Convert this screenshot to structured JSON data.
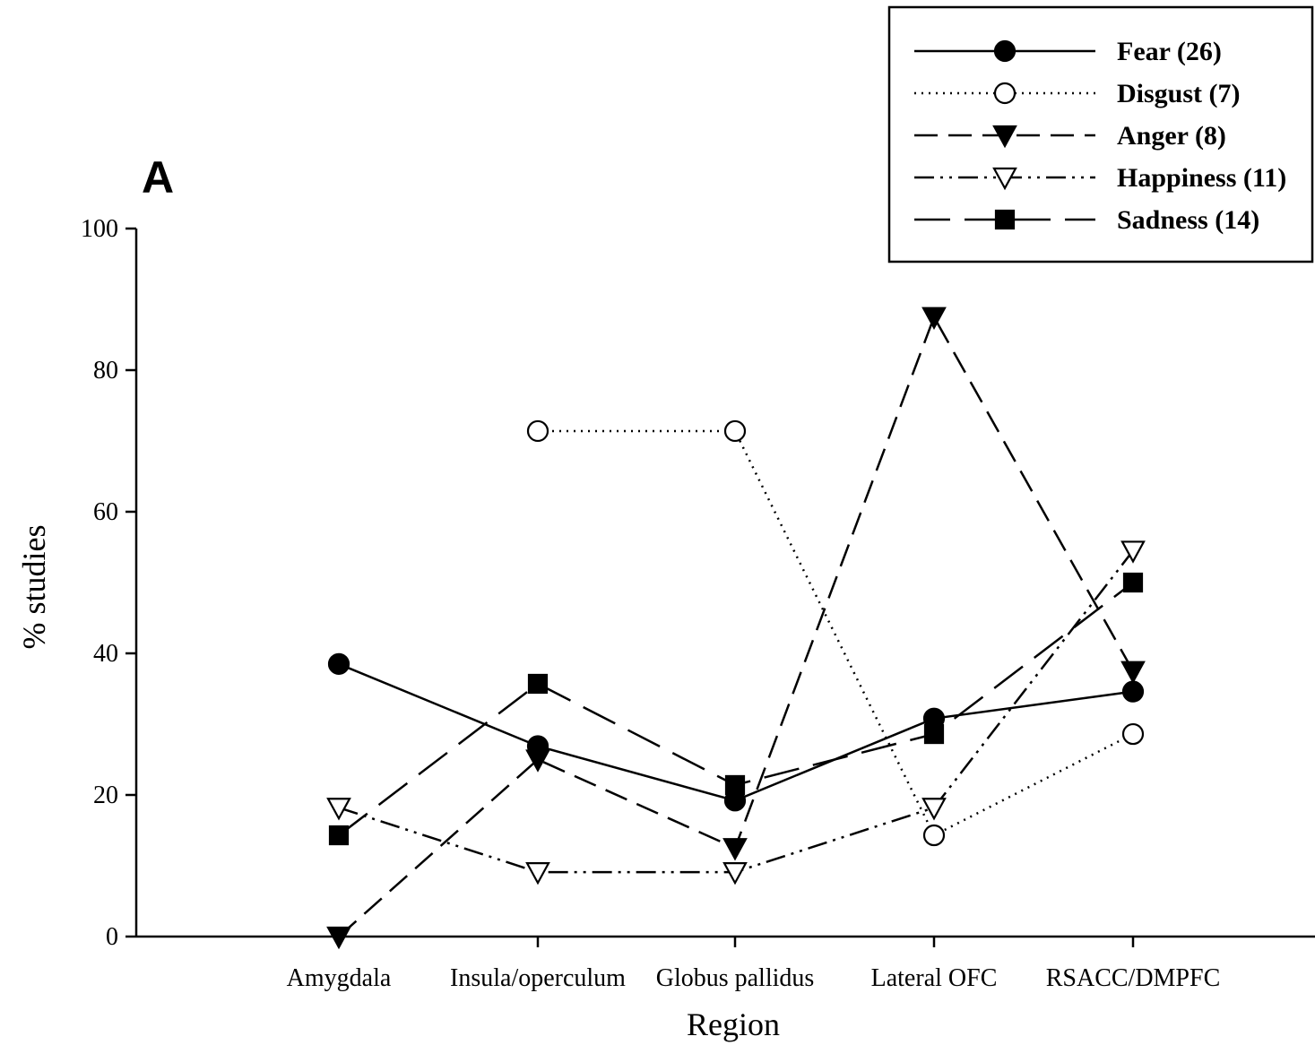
{
  "chart_data": {
    "type": "line",
    "panel_label": "A",
    "xlabel": "Region",
    "ylabel": "% studies",
    "ylim": [
      0,
      100
    ],
    "yticks": [
      0,
      20,
      40,
      60,
      80,
      100
    ],
    "categories": [
      "Amygdala",
      "Insula/operculum",
      "Globus pallidus",
      "Lateral OFC",
      "RSACC/DMPFC"
    ],
    "legend_position": "top-right",
    "grid": false,
    "series": [
      {
        "name": "Fear (26)",
        "style": "solid",
        "marker": "filled-circle",
        "values": [
          38.5,
          26.9,
          19.2,
          30.8,
          34.6
        ]
      },
      {
        "name": "Disgust (7)",
        "style": "dotted",
        "marker": "open-circle",
        "values": [
          null,
          71.4,
          71.4,
          14.3,
          28.6
        ]
      },
      {
        "name": "Anger (8)",
        "style": "dashed",
        "marker": "filled-triangle-down",
        "values": [
          0,
          25,
          12.5,
          87.5,
          37.5
        ]
      },
      {
        "name": "Happiness (11)",
        "style": "dash-dot-dot",
        "marker": "open-triangle-down",
        "values": [
          18.2,
          9.1,
          9.1,
          18.2,
          54.5
        ]
      },
      {
        "name": "Sadness (14)",
        "style": "long-dash",
        "marker": "filled-square",
        "values": [
          14.3,
          35.7,
          21.4,
          28.6,
          50
        ]
      }
    ]
  }
}
